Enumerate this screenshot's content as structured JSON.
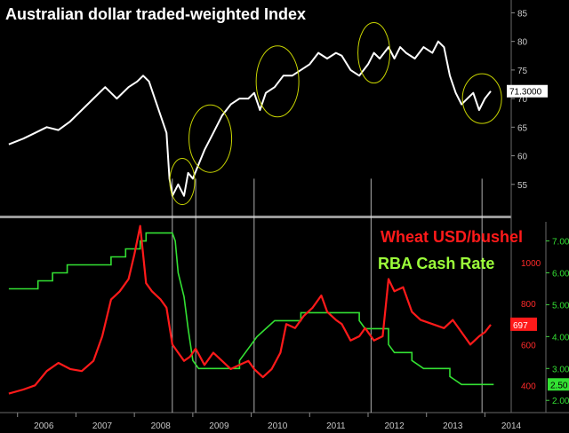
{
  "chart_data": [
    {
      "type": "line",
      "title": "Australian dollar traded-weighted Index",
      "ylim": [
        50,
        86
      ],
      "y_ticks": [
        55,
        60,
        65,
        70,
        75,
        80,
        85
      ],
      "last_value_label": "71.3000",
      "line_color": "#ffffff",
      "annotation_circle_color": "#c8d400",
      "series": [
        {
          "values": [
            [
              2005.85,
              62
            ],
            [
              2006.1,
              63
            ],
            [
              2006.3,
              64
            ],
            [
              2006.5,
              65
            ],
            [
              2006.7,
              64.5
            ],
            [
              2006.9,
              66
            ],
            [
              2007.1,
              68
            ],
            [
              2007.3,
              70
            ],
            [
              2007.5,
              72
            ],
            [
              2007.7,
              70
            ],
            [
              2007.9,
              72
            ],
            [
              2008.05,
              73
            ],
            [
              2008.15,
              74
            ],
            [
              2008.25,
              73
            ],
            [
              2008.35,
              70
            ],
            [
              2008.45,
              67
            ],
            [
              2008.55,
              64
            ],
            [
              2008.6,
              56
            ],
            [
              2008.65,
              53
            ],
            [
              2008.75,
              55
            ],
            [
              2008.85,
              53
            ],
            [
              2008.92,
              57
            ],
            [
              2009.0,
              56
            ],
            [
              2009.08,
              58
            ],
            [
              2009.2,
              61
            ],
            [
              2009.35,
              64
            ],
            [
              2009.5,
              67
            ],
            [
              2009.65,
              69
            ],
            [
              2009.8,
              70
            ],
            [
              2009.95,
              70
            ],
            [
              2010.05,
              71
            ],
            [
              2010.15,
              68
            ],
            [
              2010.25,
              71
            ],
            [
              2010.4,
              72
            ],
            [
              2010.55,
              74
            ],
            [
              2010.7,
              74
            ],
            [
              2010.85,
              75
            ],
            [
              2011.0,
              76
            ],
            [
              2011.15,
              78
            ],
            [
              2011.3,
              77
            ],
            [
              2011.45,
              78
            ],
            [
              2011.55,
              77.5
            ],
            [
              2011.7,
              75
            ],
            [
              2011.85,
              74
            ],
            [
              2012.0,
              76
            ],
            [
              2012.1,
              78
            ],
            [
              2012.2,
              77
            ],
            [
              2012.35,
              79
            ],
            [
              2012.45,
              77
            ],
            [
              2012.55,
              79
            ],
            [
              2012.65,
              78
            ],
            [
              2012.8,
              77
            ],
            [
              2012.95,
              79
            ],
            [
              2013.1,
              78
            ],
            [
              2013.2,
              80
            ],
            [
              2013.3,
              79
            ],
            [
              2013.4,
              74
            ],
            [
              2013.5,
              71
            ],
            [
              2013.6,
              69
            ],
            [
              2013.7,
              70
            ],
            [
              2013.8,
              71
            ],
            [
              2013.9,
              68
            ],
            [
              2014.0,
              70
            ],
            [
              2014.1,
              71.3
            ]
          ]
        }
      ]
    },
    {
      "type": "line",
      "series": [
        {
          "name": "Wheat USD/bushel",
          "color": "#ff1a1a",
          "last_value_label": "697",
          "values": [
            [
              2005.85,
              360
            ],
            [
              2006.1,
              380
            ],
            [
              2006.3,
              400
            ],
            [
              2006.5,
              470
            ],
            [
              2006.7,
              510
            ],
            [
              2006.9,
              480
            ],
            [
              2007.1,
              470
            ],
            [
              2007.3,
              520
            ],
            [
              2007.45,
              640
            ],
            [
              2007.6,
              820
            ],
            [
              2007.75,
              860
            ],
            [
              2007.9,
              920
            ],
            [
              2008.0,
              1040
            ],
            [
              2008.1,
              1180
            ],
            [
              2008.2,
              900
            ],
            [
              2008.3,
              860
            ],
            [
              2008.45,
              820
            ],
            [
              2008.55,
              780
            ],
            [
              2008.65,
              600
            ],
            [
              2008.75,
              560
            ],
            [
              2008.85,
              520
            ],
            [
              2008.95,
              540
            ],
            [
              2009.05,
              580
            ],
            [
              2009.2,
              500
            ],
            [
              2009.35,
              560
            ],
            [
              2009.5,
              520
            ],
            [
              2009.65,
              480
            ],
            [
              2009.8,
              500
            ],
            [
              2009.95,
              520
            ],
            [
              2010.05,
              480
            ],
            [
              2010.2,
              440
            ],
            [
              2010.35,
              480
            ],
            [
              2010.5,
              560
            ],
            [
              2010.6,
              700
            ],
            [
              2010.75,
              680
            ],
            [
              2010.9,
              740
            ],
            [
              2011.05,
              780
            ],
            [
              2011.2,
              840
            ],
            [
              2011.3,
              760
            ],
            [
              2011.45,
              720
            ],
            [
              2011.55,
              700
            ],
            [
              2011.7,
              620
            ],
            [
              2011.85,
              640
            ],
            [
              2011.95,
              680
            ],
            [
              2012.1,
              620
            ],
            [
              2012.25,
              640
            ],
            [
              2012.35,
              920
            ],
            [
              2012.45,
              860
            ],
            [
              2012.6,
              880
            ],
            [
              2012.75,
              760
            ],
            [
              2012.9,
              720
            ],
            [
              2013.1,
              700
            ],
            [
              2013.3,
              680
            ],
            [
              2013.45,
              720
            ],
            [
              2013.6,
              660
            ],
            [
              2013.75,
              600
            ],
            [
              2013.9,
              640
            ],
            [
              2014.0,
              660
            ],
            [
              2014.1,
              697
            ]
          ]
        },
        {
          "name": "RBA Cash Rate",
          "color": "#33e033",
          "last_value_label": "2.50",
          "values": [
            [
              2005.85,
              5.5
            ],
            [
              2006.35,
              5.5
            ],
            [
              2006.35,
              5.75
            ],
            [
              2006.6,
              5.75
            ],
            [
              2006.6,
              6.0
            ],
            [
              2006.85,
              6.0
            ],
            [
              2006.85,
              6.25
            ],
            [
              2007.6,
              6.25
            ],
            [
              2007.6,
              6.5
            ],
            [
              2007.85,
              6.5
            ],
            [
              2007.85,
              6.75
            ],
            [
              2008.1,
              6.75
            ],
            [
              2008.1,
              7.0
            ],
            [
              2008.2,
              7.0
            ],
            [
              2008.2,
              7.25
            ],
            [
              2008.65,
              7.25
            ],
            [
              2008.7,
              7.0
            ],
            [
              2008.75,
              6.0
            ],
            [
              2008.85,
              5.25
            ],
            [
              2008.92,
              4.25
            ],
            [
              2009.0,
              3.25
            ],
            [
              2009.1,
              3.0
            ],
            [
              2009.3,
              3.0
            ],
            [
              2009.8,
              3.0
            ],
            [
              2009.8,
              3.25
            ],
            [
              2009.9,
              3.5
            ],
            [
              2010.0,
              3.75
            ],
            [
              2010.1,
              4.0
            ],
            [
              2010.25,
              4.25
            ],
            [
              2010.4,
              4.5
            ],
            [
              2010.85,
              4.5
            ],
            [
              2010.85,
              4.75
            ],
            [
              2011.85,
              4.75
            ],
            [
              2011.85,
              4.5
            ],
            [
              2011.95,
              4.25
            ],
            [
              2012.35,
              4.25
            ],
            [
              2012.35,
              3.75
            ],
            [
              2012.45,
              3.5
            ],
            [
              2012.75,
              3.5
            ],
            [
              2012.75,
              3.25
            ],
            [
              2012.95,
              3.0
            ],
            [
              2013.4,
              3.0
            ],
            [
              2013.4,
              2.75
            ],
            [
              2013.6,
              2.5
            ],
            [
              2014.15,
              2.5
            ]
          ]
        }
      ],
      "wheat_y_ticks": [
        400,
        600,
        800,
        1000
      ],
      "rba_y_ticks": [
        "2.00",
        "3.00",
        "4.00",
        "5.00",
        "6.00",
        "7.00"
      ]
    }
  ],
  "x_tick_labels": [
    "2006",
    "2007",
    "2008",
    "2009",
    "2010",
    "2011",
    "2012",
    "2013",
    "2014"
  ],
  "x_tick_values": [
    2006.0,
    2007.0,
    2008.0,
    2009.0,
    2010.0,
    2011.0,
    2012.0,
    2013.0,
    2014.0
  ],
  "x_range": [
    2005.7,
    2014.45
  ],
  "annotation_lines_x": [
    2008.65,
    2009.05,
    2010.05,
    2012.05,
    2013.95
  ],
  "annotation_circles": [
    {
      "x": 2008.82,
      "y": 55.5
    },
    {
      "x": 2009.3,
      "y": 63
    },
    {
      "x": 2010.45,
      "y": 73
    },
    {
      "x": 2012.1,
      "y": 78
    },
    {
      "x": 2013.95,
      "y": 70
    }
  ]
}
